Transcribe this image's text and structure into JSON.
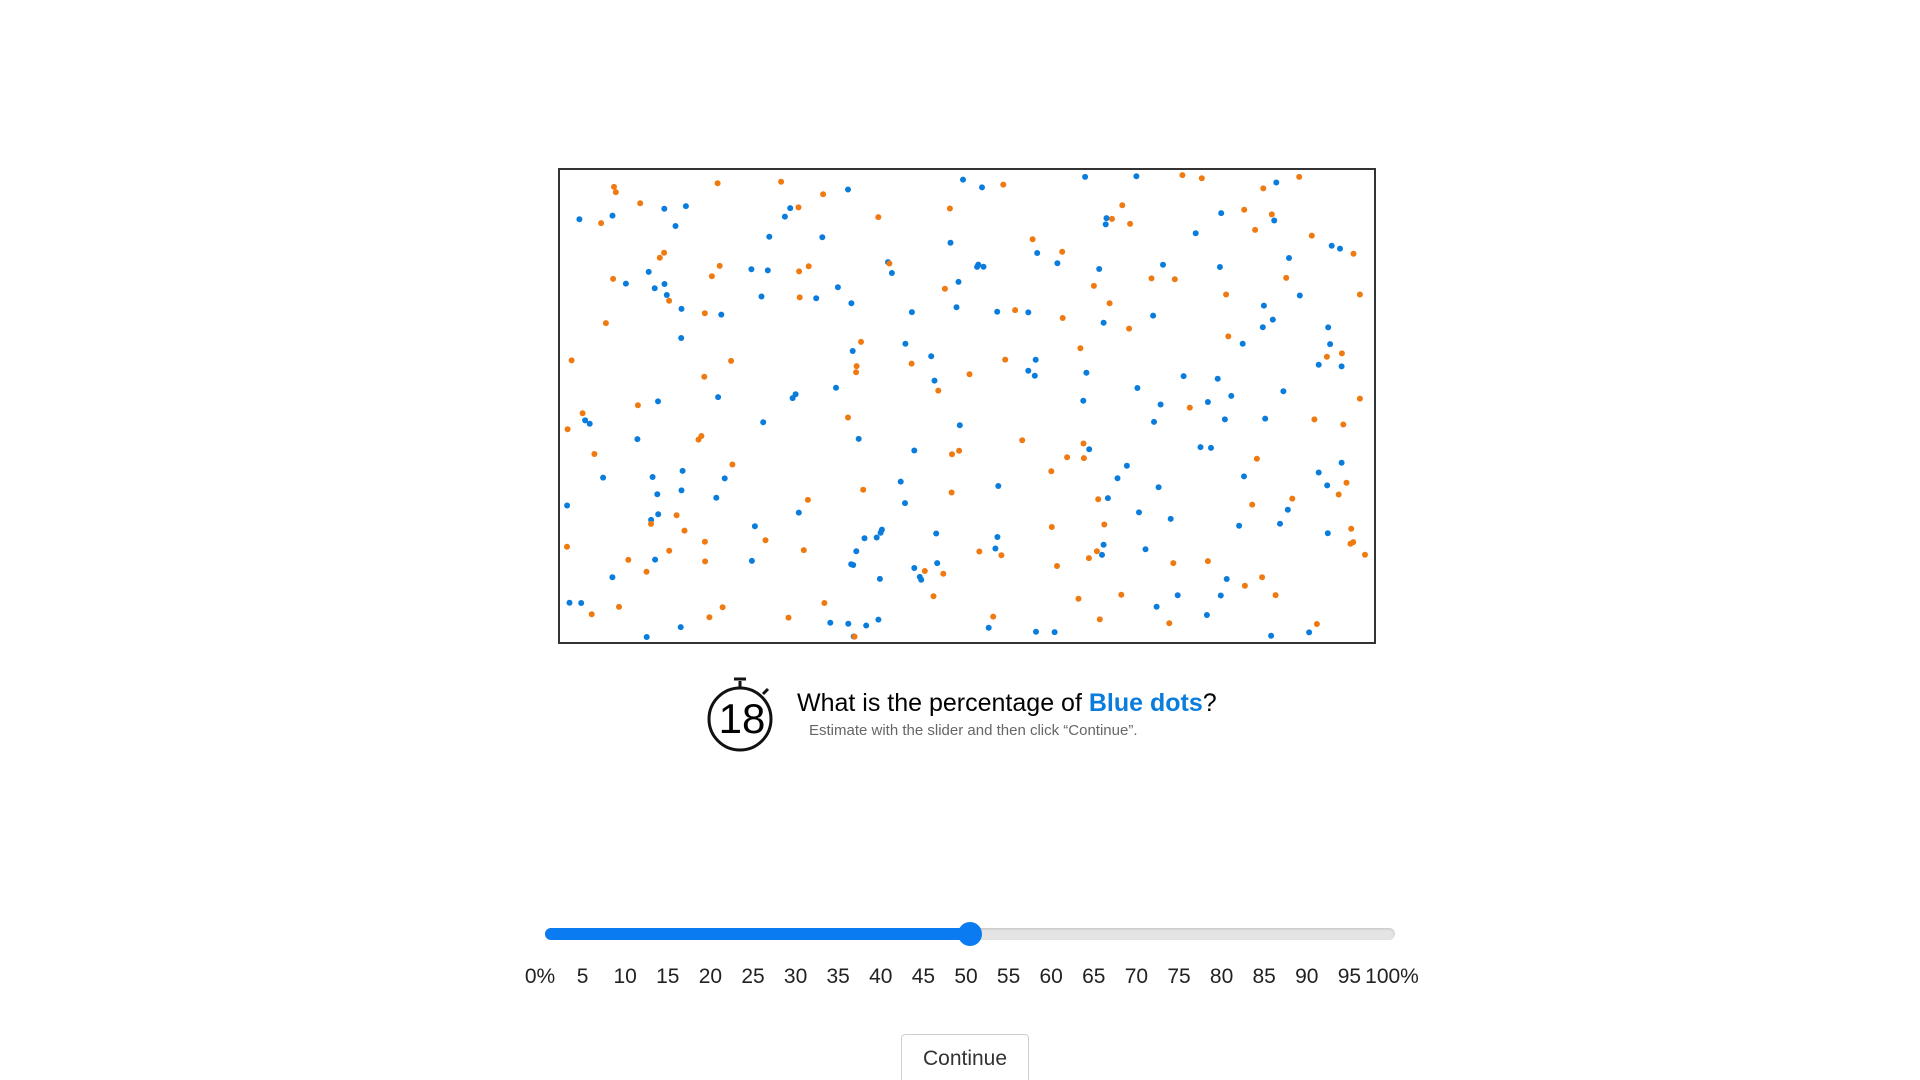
{
  "colors": {
    "blue_dot": "#0a7ddc",
    "orange_dot": "#ef7a12",
    "slider_fill": "#0a7bf0",
    "highlight": "#0a7ddc"
  },
  "timer": {
    "icon": "stopwatch-icon",
    "value": "18"
  },
  "question": {
    "prefix": "What is the percentage of ",
    "highlight": "Blue dots",
    "suffix": "?",
    "instructions": "Estimate with the slider and then click “Continue”."
  },
  "slider": {
    "min": 0,
    "max": 100,
    "value": 50,
    "tick_labels": [
      "0%",
      "5",
      "10",
      "15",
      "20",
      "25",
      "30",
      "35",
      "40",
      "45",
      "50",
      "55",
      "60",
      "65",
      "70",
      "75",
      "80",
      "85",
      "90",
      "95",
      "100%"
    ]
  },
  "continue_label": "Continue"
}
